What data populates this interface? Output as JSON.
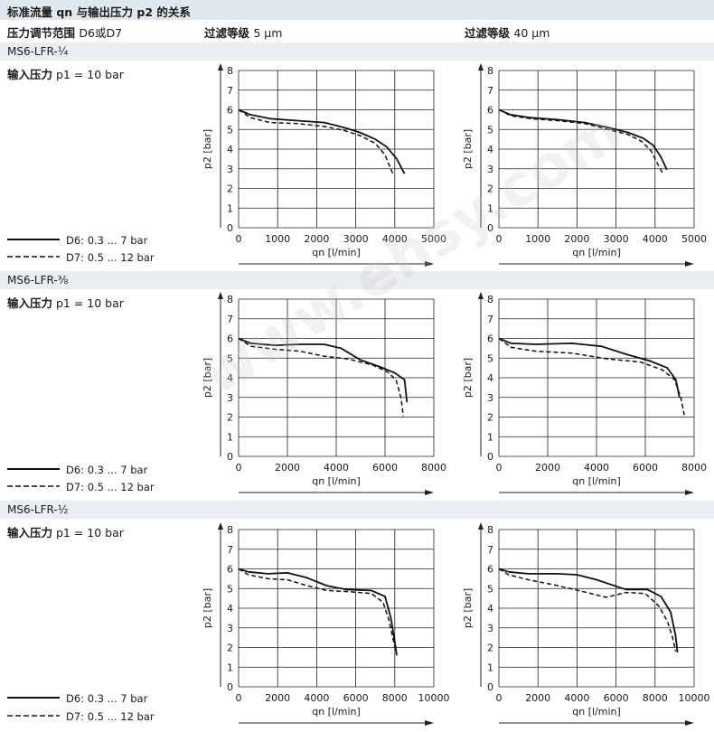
{
  "title": "标准流量 qn 与输出压力 p2 的关系",
  "header": {
    "range_label": "压力调节范围",
    "range_value": "D6或D7",
    "filter_label": "过滤等级",
    "filter_5": "5 μm",
    "filter_40": "40 μm"
  },
  "sections": [
    {
      "name": "MS6-LFR-¼",
      "input_label": "输入压力",
      "input_value": "p1 = 10 bar",
      "legend_d6": "D6: 0.3 ... 7 bar",
      "legend_d7": "D7: 0.5 ... 12 bar"
    },
    {
      "name": "MS6-LFR-⅜",
      "input_label": "输入压力",
      "input_value": "p1 = 10 bar",
      "legend_d6": "D6: 0.3 ... 7 bar",
      "legend_d7": "D7: 0.5 ... 12 bar"
    },
    {
      "name": "MS6-LFR-½",
      "input_label": "输入压力",
      "input_value": "p1 = 10 bar",
      "legend_d6": "D6: 0.3 ... 7 bar",
      "legend_d7": "D7: 0.5 ... 12 bar"
    }
  ],
  "watermark": "www.ehsy.com",
  "chart_data": [
    {
      "type": "line",
      "section": "MS6-LFR-¼",
      "filter": "5 μm",
      "xlabel": "qn [l/min]",
      "ylabel": "p2 [bar]",
      "xlim": [
        0,
        5000
      ],
      "ylim": [
        0,
        8
      ],
      "xticks": [
        0,
        1000,
        2000,
        3000,
        4000,
        5000
      ],
      "yticks": [
        0,
        1,
        2,
        3,
        4,
        5,
        6,
        7,
        8
      ],
      "series": [
        {
          "name": "D6: 0.3 ... 7 bar",
          "style": "solid",
          "x": [
            0,
            300,
            800,
            1500,
            2200,
            2700,
            3100,
            3500,
            3800,
            4050,
            4250
          ],
          "y": [
            6.0,
            5.75,
            5.55,
            5.45,
            5.35,
            5.1,
            4.85,
            4.5,
            4.1,
            3.5,
            2.75
          ]
        },
        {
          "name": "D7: 0.5 ... 12 bar",
          "style": "dashed",
          "x": [
            0,
            300,
            800,
            1500,
            2200,
            2700,
            3100,
            3500,
            3750,
            3950
          ],
          "y": [
            6.0,
            5.6,
            5.35,
            5.3,
            5.15,
            4.95,
            4.7,
            4.3,
            3.7,
            2.75
          ]
        }
      ]
    },
    {
      "type": "line",
      "section": "MS6-LFR-¼",
      "filter": "40 μm",
      "xlabel": "qn [l/min]",
      "ylabel": "p2 [bar]",
      "xlim": [
        0,
        5000
      ],
      "ylim": [
        0,
        8
      ],
      "xticks": [
        0,
        1000,
        2000,
        3000,
        4000,
        5000
      ],
      "yticks": [
        0,
        1,
        2,
        3,
        4,
        5,
        6,
        7,
        8
      ],
      "series": [
        {
          "name": "D6: 0.3 ... 7 bar",
          "style": "solid",
          "x": [
            0,
            300,
            800,
            1500,
            2200,
            2800,
            3300,
            3700,
            3950,
            4150,
            4300
          ],
          "y": [
            6.0,
            5.75,
            5.6,
            5.5,
            5.35,
            5.1,
            4.85,
            4.55,
            4.2,
            3.6,
            2.95
          ]
        },
        {
          "name": "D7: 0.5 ... 12 bar",
          "style": "dashed",
          "x": [
            0,
            300,
            800,
            1500,
            2200,
            2800,
            3300,
            3650,
            3900,
            4050,
            4200
          ],
          "y": [
            6.0,
            5.7,
            5.55,
            5.45,
            5.3,
            5.0,
            4.75,
            4.4,
            3.9,
            3.3,
            2.75
          ]
        }
      ]
    },
    {
      "type": "line",
      "section": "MS6-LFR-⅜",
      "filter": "5 μm",
      "xlabel": "qn [l/min]",
      "ylabel": "p2 [bar]",
      "xlim": [
        0,
        8000
      ],
      "ylim": [
        0,
        8
      ],
      "xticks": [
        0,
        2000,
        4000,
        6000,
        8000
      ],
      "yticks": [
        0,
        1,
        2,
        3,
        4,
        5,
        6,
        7,
        8
      ],
      "series": [
        {
          "name": "D6: 0.3 ... 7 bar",
          "style": "solid",
          "x": [
            0,
            500,
            1500,
            2500,
            3500,
            4200,
            5000,
            5800,
            6400,
            6800,
            6900
          ],
          "y": [
            6.0,
            5.75,
            5.65,
            5.7,
            5.7,
            5.5,
            4.9,
            4.55,
            4.25,
            3.9,
            2.75
          ]
        },
        {
          "name": "D7: 0.5 ... 12 bar",
          "style": "dashed",
          "x": [
            0,
            500,
            1500,
            2500,
            3500,
            4500,
            5500,
            6100,
            6450,
            6650,
            6750
          ],
          "y": [
            6.0,
            5.6,
            5.45,
            5.35,
            5.1,
            4.95,
            4.65,
            4.3,
            3.9,
            3.0,
            2.05
          ]
        }
      ]
    },
    {
      "type": "line",
      "section": "MS6-LFR-⅜",
      "filter": "40 μm",
      "xlabel": "qn [l/min]",
      "ylabel": "p2 [bar]",
      "xlim": [
        0,
        8000
      ],
      "ylim": [
        0,
        8
      ],
      "xticks": [
        0,
        2000,
        4000,
        6000,
        8000
      ],
      "yticks": [
        0,
        1,
        2,
        3,
        4,
        5,
        6,
        7,
        8
      ],
      "series": [
        {
          "name": "D6: 0.3 ... 7 bar",
          "style": "solid",
          "x": [
            0,
            500,
            1500,
            3000,
            4200,
            5200,
            6200,
            6900,
            7250,
            7400
          ],
          "y": [
            6.0,
            5.75,
            5.7,
            5.75,
            5.6,
            5.2,
            4.85,
            4.5,
            3.9,
            3.0
          ]
        },
        {
          "name": "D7: 0.5 ... 12 bar",
          "style": "dashed",
          "x": [
            0,
            500,
            1500,
            3000,
            4500,
            5800,
            6700,
            7200,
            7450,
            7600
          ],
          "y": [
            6.0,
            5.55,
            5.35,
            5.25,
            4.95,
            4.8,
            4.4,
            3.9,
            3.0,
            2.1
          ]
        }
      ]
    },
    {
      "type": "line",
      "section": "MS6-LFR-½",
      "filter": "5 μm",
      "xlabel": "qn [l/min]",
      "ylabel": "p2 [bar]",
      "xlim": [
        0,
        10000
      ],
      "ylim": [
        0,
        8
      ],
      "xticks": [
        0,
        2000,
        4000,
        6000,
        8000,
        10000
      ],
      "yticks": [
        0,
        1,
        2,
        3,
        4,
        5,
        6,
        7,
        8
      ],
      "series": [
        {
          "name": "D6: 0.3 ... 7 bar",
          "style": "solid",
          "x": [
            0,
            500,
            1500,
            2500,
            3500,
            4500,
            5500,
            6800,
            7500,
            7800,
            8000,
            8100
          ],
          "y": [
            6.0,
            5.85,
            5.75,
            5.8,
            5.55,
            5.15,
            4.95,
            4.9,
            4.6,
            3.5,
            2.3,
            1.6
          ]
        },
        {
          "name": "D7: 0.5 ... 12 bar",
          "style": "dashed",
          "x": [
            0,
            500,
            1500,
            2500,
            3500,
            4500,
            5500,
            6800,
            7400,
            7700,
            7900,
            8050
          ],
          "y": [
            6.0,
            5.7,
            5.5,
            5.45,
            5.15,
            4.9,
            4.85,
            4.75,
            4.3,
            3.4,
            2.5,
            1.8
          ]
        }
      ]
    },
    {
      "type": "line",
      "section": "MS6-LFR-½",
      "filter": "40 μm",
      "xlabel": "qn [l/min]",
      "ylabel": "p2 [bar]",
      "xlim": [
        0,
        10000
      ],
      "ylim": [
        0,
        8
      ],
      "xticks": [
        0,
        2000,
        4000,
        6000,
        8000,
        10000
      ],
      "yticks": [
        0,
        1,
        2,
        3,
        4,
        5,
        6,
        7,
        8
      ],
      "series": [
        {
          "name": "D6: 0.3 ... 7 bar",
          "style": "solid",
          "x": [
            0,
            500,
            1500,
            3000,
            4000,
            5000,
            6500,
            7600,
            8300,
            8800,
            9050,
            9150
          ],
          "y": [
            6.0,
            5.85,
            5.75,
            5.75,
            5.7,
            5.45,
            4.95,
            4.95,
            4.6,
            3.8,
            2.6,
            1.75
          ]
        },
        {
          "name": "D7: 0.5 ... 12 bar",
          "style": "dashed",
          "x": [
            0,
            500,
            1500,
            3000,
            4500,
            5500,
            6500,
            7500,
            8200,
            8650,
            8900,
            9050
          ],
          "y": [
            6.0,
            5.7,
            5.45,
            5.15,
            4.8,
            4.55,
            4.8,
            4.75,
            4.1,
            3.3,
            2.5,
            1.8
          ]
        }
      ]
    }
  ]
}
